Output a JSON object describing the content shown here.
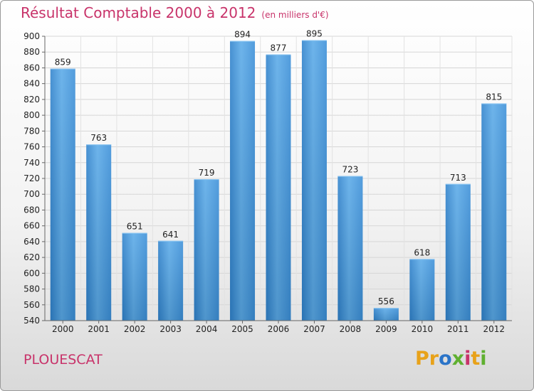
{
  "title": "Résultat Comptable 2000 à 2012",
  "subtitle": "(en milliers d'€)",
  "place": "PLOUESCAT",
  "logo": {
    "letters": [
      "P",
      "r",
      "o",
      "x",
      "i",
      "t",
      "i"
    ],
    "colors": [
      "#e8a21a",
      "#e8a21a",
      "#2a74c8",
      "#5fb030",
      "#c8336a",
      "#e8a21a",
      "#5fb030"
    ]
  },
  "colors": {
    "bar": "#3d8fd6",
    "bar_light": "#5aaae8",
    "bar_dark": "#2a78bf",
    "title": "#c8336a"
  },
  "chart_data": {
    "type": "bar",
    "title": "Résultat Comptable 2000 à 2012",
    "subtitle": "(en milliers d'€)",
    "categories": [
      "2000",
      "2001",
      "2002",
      "2003",
      "2004",
      "2005",
      "2006",
      "2007",
      "2008",
      "2009",
      "2010",
      "2011",
      "2012"
    ],
    "values": [
      859,
      763,
      651,
      641,
      719,
      894,
      877,
      895,
      723,
      556,
      618,
      713,
      815
    ],
    "ylim": [
      540,
      900
    ],
    "yticks": [
      540,
      560,
      580,
      600,
      620,
      640,
      660,
      680,
      700,
      720,
      740,
      760,
      780,
      800,
      820,
      840,
      860,
      880,
      900
    ],
    "grid": true,
    "xlabel": "",
    "ylabel": ""
  }
}
